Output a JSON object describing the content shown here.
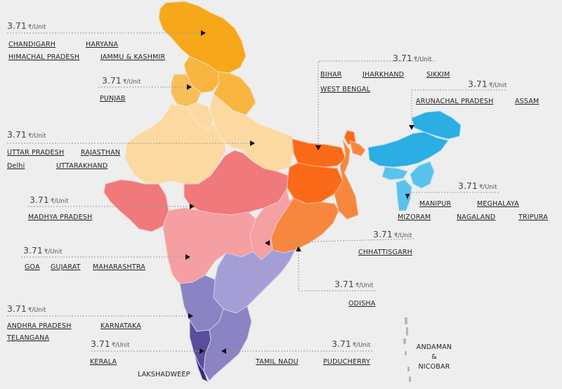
{
  "prices": {
    "north": {
      "value": "3.71",
      "unit": "₹/Unit"
    },
    "east": {
      "value": "3.71",
      "unit": "₹/Unit"
    },
    "northeast": {
      "value": "3.71",
      "unit": "₹/Unit"
    },
    "punjab": {
      "value": "3.71",
      "unit": "₹/Unit"
    },
    "up": {
      "value": "3.71",
      "unit": "₹/Unit"
    },
    "mp": {
      "value": "3.71",
      "unit": "₹/Unit"
    },
    "ne_south": {
      "value": "3.71",
      "unit": "₹/Unit"
    },
    "chhattisgarh": {
      "value": "3.71",
      "unit": "₹/Unit"
    },
    "west": {
      "value": "3.71",
      "unit": "₹/Unit"
    },
    "odisha": {
      "value": "3.71",
      "unit": "₹/Unit"
    },
    "south": {
      "value": "3.71",
      "unit": "₹/Unit"
    },
    "kerala": {
      "value": "3.71",
      "unit": "₹/Unit"
    },
    "tamilnadu": {
      "value": "3.71",
      "unit": "₹/Unit"
    }
  },
  "states": {
    "chandigarh": "CHANDIGARH",
    "haryana": "HARYANA",
    "himachal": "HIMACHAL PRADESH",
    "jammu": "JAMMU & KASHMIR",
    "bihar": "BIHAR",
    "jharkhand": "JHARKHAND",
    "sikkim": "SIKKIM",
    "westbengal": "WEST BENGAL",
    "arunachal": "ARUNACHAL PRADESH",
    "assam": "ASSAM",
    "punjab": "PUNJAB",
    "uttarpradesh": "UTTAR PRADESH",
    "rajasthan": "RAJASTHAN",
    "delhi": "Delhi",
    "uttarakhand": "UTTARAKHAND",
    "madhyapradesh": "MADHYA PRADESH",
    "manipur": "MANIPUR",
    "meghalaya": "MEGHALAYA",
    "mizoram": "MIZORAM",
    "nagaland": "NAGALAND",
    "tripura": "TRIPURA",
    "chhattisgarh": "CHHATTISGARH",
    "goa": "GOA",
    "gujarat": "GUJARAT",
    "maharashtra": "MAHARASHTRA",
    "odisha": "ODISHA",
    "andhra": "ANDHRA PRADESH",
    "karnataka": "KARNATAKA",
    "telangana": "TELANGANA",
    "kerala": "KERALA",
    "lakshadweep": "LAKSHADWEEP",
    "tamilnadu": "TAMIL NADU",
    "puducherry": "PUDUCHERRY",
    "andaman1": "ANDAMAN",
    "andaman2": "&",
    "andaman3": "NICOBAR"
  },
  "colors": {
    "north": "#f6a81a",
    "north_light": "#f8b640",
    "punjab": "#f7bf58",
    "central_north": "#fbd9a0",
    "east": "#fa6a18",
    "east_light": "#f7873e",
    "northeast": "#2aaee3",
    "northeast_light": "#59c3ed",
    "madhya": "#f0797b",
    "west": "#f59fa2",
    "chhattisgarh_region": "#f5a0a3",
    "south": "#8a84c4",
    "south_light": "#a59ed6",
    "south_dark": "#5a4d9b",
    "south_darkest": "#3b2c74",
    "background": "#eeeeee"
  }
}
